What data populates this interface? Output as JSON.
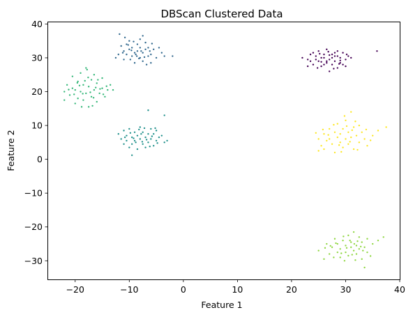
{
  "chart_data": {
    "type": "scatter",
    "title": "DBScan Clustered Data",
    "xlabel": "Feature 1",
    "ylabel": "Feature 2",
    "xlim": [
      -25,
      40
    ],
    "ylim": [
      -35.5,
      40.5
    ],
    "xticks": [
      -20,
      -10,
      0,
      10,
      20,
      30,
      40
    ],
    "yticks": [
      -30,
      -20,
      -10,
      0,
      10,
      20,
      30,
      40
    ],
    "grid": false,
    "legend": "none",
    "series": [
      {
        "color": "#440154",
        "points": [
          [
            22.0,
            30.0
          ],
          [
            23.0,
            29.5
          ],
          [
            23.5,
            31.0
          ],
          [
            24.0,
            28.0
          ],
          [
            24.5,
            30.5
          ],
          [
            25.0,
            32.0
          ],
          [
            25.0,
            29.0
          ],
          [
            25.5,
            27.5
          ],
          [
            26.0,
            31.0
          ],
          [
            26.0,
            30.0
          ],
          [
            26.5,
            28.5
          ],
          [
            26.5,
            32.5
          ],
          [
            27.0,
            29.5
          ],
          [
            27.0,
            26.0
          ],
          [
            27.5,
            31.0
          ],
          [
            27.5,
            28.0
          ],
          [
            28.0,
            30.5
          ],
          [
            28.0,
            29.0
          ],
          [
            28.5,
            27.0
          ],
          [
            28.5,
            32.0
          ],
          [
            29.0,
            30.0
          ],
          [
            29.0,
            28.5
          ],
          [
            29.5,
            31.5
          ],
          [
            30.0,
            29.5
          ],
          [
            30.0,
            27.5
          ],
          [
            30.5,
            30.5
          ],
          [
            23.0,
            27.5
          ],
          [
            24.5,
            29.5
          ],
          [
            25.5,
            30.0
          ],
          [
            26.5,
            29.0
          ],
          [
            27.5,
            30.0
          ],
          [
            28.5,
            30.5
          ],
          [
            29.5,
            28.0
          ],
          [
            31.0,
            30.0
          ],
          [
            35.8,
            32.0
          ],
          [
            24.0,
            31.5
          ],
          [
            26.0,
            28.0
          ],
          [
            27.0,
            30.8
          ],
          [
            28.0,
            31.5
          ],
          [
            25.5,
            28.8
          ],
          [
            29.0,
            29.2
          ],
          [
            30.2,
            31.0
          ],
          [
            24.8,
            27.0
          ],
          [
            27.8,
            26.8
          ],
          [
            26.8,
            31.8
          ],
          [
            23.5,
            29.0
          ],
          [
            25.2,
            31.2
          ],
          [
            28.8,
            28.2
          ]
        ]
      },
      {
        "color": "#31688e",
        "points": [
          [
            -12.5,
            30.0
          ],
          [
            -12.0,
            31.0
          ],
          [
            -11.5,
            33.5
          ],
          [
            -11.0,
            32.0
          ],
          [
            -11.0,
            29.5
          ],
          [
            -10.5,
            34.0
          ],
          [
            -10.5,
            31.0
          ],
          [
            -10.0,
            32.5
          ],
          [
            -10.0,
            35.0
          ],
          [
            -9.5,
            30.5
          ],
          [
            -9.5,
            33.0
          ],
          [
            -9.0,
            31.5
          ],
          [
            -9.0,
            28.5
          ],
          [
            -8.5,
            34.0
          ],
          [
            -8.5,
            32.0
          ],
          [
            -8.0,
            30.0
          ],
          [
            -8.0,
            33.0
          ],
          [
            -8.0,
            35.5
          ],
          [
            -7.5,
            31.5
          ],
          [
            -7.5,
            29.0
          ],
          [
            -7.0,
            32.5
          ],
          [
            -7.0,
            34.5
          ],
          [
            -6.5,
            30.5
          ],
          [
            -6.5,
            33.0
          ],
          [
            -6.0,
            31.0
          ],
          [
            -6.0,
            28.5
          ],
          [
            -5.5,
            32.5
          ],
          [
            -5.0,
            30.0
          ],
          [
            -4.5,
            33.0
          ],
          [
            -4.0,
            31.5
          ],
          [
            -3.5,
            30.5
          ],
          [
            -2.0,
            30.5
          ],
          [
            -11.8,
            37.0
          ],
          [
            -10.8,
            36.0
          ],
          [
            -7.5,
            36.5
          ],
          [
            -8.8,
            31.0
          ],
          [
            -9.8,
            29.5
          ],
          [
            -6.8,
            28.0
          ],
          [
            -7.8,
            32.0
          ],
          [
            -8.2,
            29.8
          ],
          [
            -10.2,
            33.8
          ],
          [
            -5.8,
            34.2
          ],
          [
            -9.2,
            34.8
          ],
          [
            -7.2,
            30.2
          ],
          [
            -11.2,
            31.5
          ],
          [
            -6.2,
            32.0
          ],
          [
            -8.6,
            30.5
          ],
          [
            -9.6,
            32.2
          ]
        ]
      },
      {
        "color": "#21918c",
        "points": [
          [
            -12.0,
            7.5
          ],
          [
            -11.5,
            6.0
          ],
          [
            -11.0,
            8.5
          ],
          [
            -10.5,
            5.5
          ],
          [
            -10.5,
            7.0
          ],
          [
            -10.0,
            9.0
          ],
          [
            -10.0,
            3.5
          ],
          [
            -9.5,
            6.5
          ],
          [
            -9.5,
            4.5
          ],
          [
            -9.0,
            8.0
          ],
          [
            -9.0,
            5.5
          ],
          [
            -8.5,
            7.0
          ],
          [
            -8.5,
            3.0
          ],
          [
            -8.0,
            9.5
          ],
          [
            -8.0,
            6.0
          ],
          [
            -7.5,
            4.5
          ],
          [
            -7.5,
            8.0
          ],
          [
            -7.0,
            6.5
          ],
          [
            -7.0,
            3.5
          ],
          [
            -6.5,
            7.5
          ],
          [
            -6.5,
            5.0
          ],
          [
            -6.0,
            9.0
          ],
          [
            -6.0,
            6.0
          ],
          [
            -5.5,
            4.0
          ],
          [
            -5.5,
            7.5
          ],
          [
            -5.0,
            8.5
          ],
          [
            -5.0,
            5.5
          ],
          [
            -4.5,
            6.5
          ],
          [
            -4.0,
            7.0
          ],
          [
            -3.5,
            5.0
          ],
          [
            -3.0,
            5.5
          ],
          [
            -3.5,
            13.0
          ],
          [
            -6.5,
            14.5
          ],
          [
            -9.5,
            1.2
          ],
          [
            -11.0,
            4.5
          ],
          [
            -8.8,
            5.0
          ],
          [
            -7.8,
            7.5
          ],
          [
            -6.8,
            5.8
          ],
          [
            -5.8,
            6.8
          ],
          [
            -4.8,
            4.8
          ],
          [
            -9.8,
            7.8
          ],
          [
            -7.2,
            9.2
          ],
          [
            -10.8,
            6.5
          ],
          [
            -8.2,
            8.8
          ],
          [
            -6.2,
            3.8
          ],
          [
            -5.2,
            9.2
          ],
          [
            -9.2,
            6.2
          ],
          [
            -7.6,
            5.2
          ]
        ]
      },
      {
        "color": "#35b779",
        "points": [
          [
            -22.0,
            17.5
          ],
          [
            -22.0,
            20.0
          ],
          [
            -21.5,
            22.0
          ],
          [
            -21.0,
            19.0
          ],
          [
            -20.5,
            24.5
          ],
          [
            -20.5,
            21.0
          ],
          [
            -20.0,
            16.5
          ],
          [
            -20.0,
            20.5
          ],
          [
            -19.5,
            18.0
          ],
          [
            -19.5,
            23.0
          ],
          [
            -19.0,
            20.0
          ],
          [
            -19.0,
            25.5
          ],
          [
            -18.5,
            17.5
          ],
          [
            -18.5,
            22.0
          ],
          [
            -18.0,
            19.5
          ],
          [
            -18.0,
            27.0
          ],
          [
            -17.5,
            21.5
          ],
          [
            -17.5,
            15.5
          ],
          [
            -17.0,
            23.5
          ],
          [
            -17.0,
            18.5
          ],
          [
            -16.5,
            20.5
          ],
          [
            -16.5,
            25.0
          ],
          [
            -16.0,
            17.0
          ],
          [
            -16.0,
            22.5
          ],
          [
            -15.5,
            19.5
          ],
          [
            -15.0,
            21.0
          ],
          [
            -15.0,
            24.0
          ],
          [
            -14.5,
            18.5
          ],
          [
            -14.0,
            20.5
          ],
          [
            -13.5,
            22.0
          ],
          [
            -13.0,
            20.5
          ],
          [
            -17.8,
            26.5
          ],
          [
            -18.8,
            15.5
          ],
          [
            -16.8,
            15.8
          ],
          [
            -15.8,
            23.5
          ],
          [
            -19.2,
            21.8
          ],
          [
            -17.2,
            19.8
          ],
          [
            -16.2,
            21.2
          ],
          [
            -18.2,
            23.2
          ],
          [
            -14.8,
            19.2
          ],
          [
            -20.2,
            19.2
          ],
          [
            -17.6,
            24.2
          ],
          [
            -19.6,
            22.6
          ],
          [
            -15.4,
            20.8
          ],
          [
            -18.6,
            19.4
          ],
          [
            -16.6,
            18.2
          ],
          [
            -14.2,
            21.6
          ],
          [
            -21.2,
            20.6
          ]
        ]
      },
      {
        "color": "#90d743",
        "points": [
          [
            25.0,
            -27.0
          ],
          [
            26.0,
            -29.5
          ],
          [
            26.5,
            -25.0
          ],
          [
            27.0,
            -28.0
          ],
          [
            27.5,
            -26.0
          ],
          [
            28.0,
            -23.5
          ],
          [
            28.5,
            -27.5
          ],
          [
            28.5,
            -25.0
          ],
          [
            29.0,
            -29.0
          ],
          [
            29.0,
            -26.5
          ],
          [
            29.5,
            -24.0
          ],
          [
            30.0,
            -27.5
          ],
          [
            30.0,
            -25.5
          ],
          [
            30.5,
            -22.5
          ],
          [
            30.5,
            -28.5
          ],
          [
            31.0,
            -26.0
          ],
          [
            31.0,
            -24.5
          ],
          [
            31.5,
            -27.0
          ],
          [
            31.5,
            -21.5
          ],
          [
            32.0,
            -25.5
          ],
          [
            32.0,
            -28.0
          ],
          [
            32.5,
            -23.0
          ],
          [
            32.5,
            -26.5
          ],
          [
            33.0,
            -24.5
          ],
          [
            33.0,
            -29.5
          ],
          [
            33.5,
            -26.0
          ],
          [
            33.5,
            -32.0
          ],
          [
            34.0,
            -27.5
          ],
          [
            34.0,
            -23.5
          ],
          [
            35.0,
            -25.0
          ],
          [
            36.0,
            -24.0
          ],
          [
            37.0,
            -23.0
          ],
          [
            27.8,
            -29.0
          ],
          [
            29.8,
            -30.0
          ],
          [
            31.8,
            -29.8
          ],
          [
            28.2,
            -24.8
          ],
          [
            30.2,
            -26.2
          ],
          [
            32.2,
            -24.2
          ],
          [
            29.2,
            -27.8
          ],
          [
            31.2,
            -28.2
          ],
          [
            33.2,
            -27.0
          ],
          [
            26.2,
            -26.2
          ],
          [
            34.6,
            -28.6
          ],
          [
            30.8,
            -24.0
          ],
          [
            27.2,
            -25.6
          ],
          [
            32.8,
            -25.8
          ],
          [
            29.6,
            -22.8
          ],
          [
            31.6,
            -25.0
          ]
        ]
      },
      {
        "color": "#fde725",
        "points": [
          [
            25.0,
            2.5
          ],
          [
            25.0,
            6.0
          ],
          [
            25.5,
            4.0
          ],
          [
            26.0,
            7.5
          ],
          [
            26.0,
            3.0
          ],
          [
            26.5,
            5.5
          ],
          [
            27.0,
            9.0
          ],
          [
            27.0,
            6.0
          ],
          [
            27.5,
            4.5
          ],
          [
            28.0,
            8.0
          ],
          [
            28.0,
            2.0
          ],
          [
            28.5,
            6.5
          ],
          [
            28.5,
            10.5
          ],
          [
            29.0,
            5.0
          ],
          [
            29.0,
            7.5
          ],
          [
            29.5,
            3.5
          ],
          [
            29.5,
            9.0
          ],
          [
            30.0,
            6.0
          ],
          [
            30.0,
            11.5
          ],
          [
            30.5,
            8.0
          ],
          [
            30.5,
            4.5
          ],
          [
            31.0,
            14.0
          ],
          [
            31.0,
            6.5
          ],
          [
            31.5,
            9.5
          ],
          [
            31.5,
            3.0
          ],
          [
            32.0,
            7.0
          ],
          [
            32.5,
            5.0
          ],
          [
            32.5,
            10.0
          ],
          [
            33.0,
            8.0
          ],
          [
            33.5,
            6.0
          ],
          [
            34.0,
            4.0
          ],
          [
            35.0,
            7.0
          ],
          [
            36.0,
            8.5
          ],
          [
            37.5,
            9.5
          ],
          [
            24.5,
            7.8
          ],
          [
            30.8,
            5.2
          ],
          [
            29.2,
            2.2
          ],
          [
            27.8,
            10.2
          ],
          [
            31.8,
            11.2
          ],
          [
            33.8,
            8.8
          ],
          [
            26.8,
            7.2
          ],
          [
            28.8,
            4.2
          ],
          [
            32.2,
            2.8
          ],
          [
            30.2,
            9.8
          ],
          [
            34.6,
            5.6
          ],
          [
            25.8,
            8.8
          ],
          [
            29.8,
            12.8
          ],
          [
            31.2,
            8.6
          ]
        ]
      }
    ]
  }
}
